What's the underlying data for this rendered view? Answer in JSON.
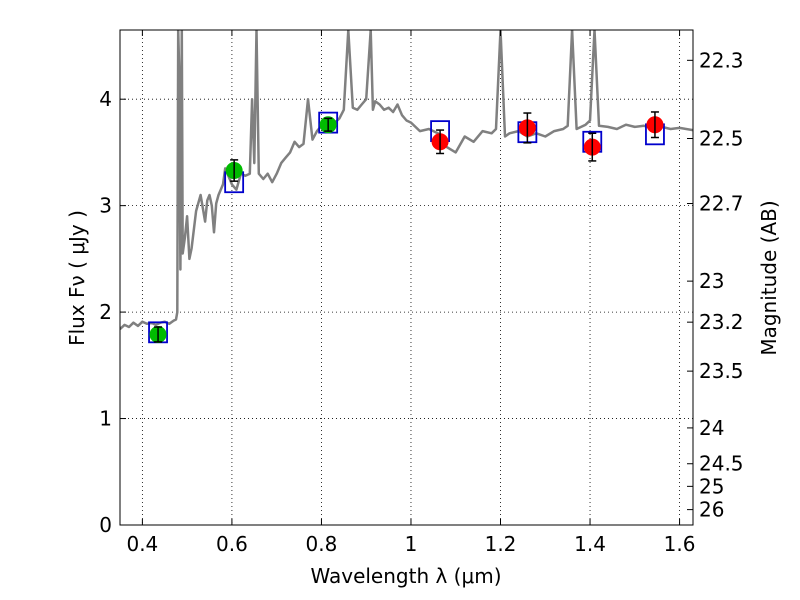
{
  "chart_data": {
    "type": "scatter",
    "xlabel": "Wavelength  λ (μm)",
    "ylabel": "Flux  Fν  ( μJy )",
    "y2label": "Magnitude (AB)",
    "xlim": [
      0.35,
      1.63
    ],
    "ylim": [
      0,
      4.65
    ],
    "grid": true,
    "x_ticks": [
      0.4,
      0.6,
      0.8,
      1.0,
      1.2,
      1.4,
      1.6
    ],
    "x_tick_labels": [
      "0.4",
      "0.6",
      "0.8",
      "1",
      "1.2",
      "1.4",
      "1.6"
    ],
    "y_ticks": [
      0,
      1,
      2,
      3,
      4
    ],
    "y_tick_labels": [
      "0",
      "1",
      "2",
      "3",
      "4"
    ],
    "mag_ticks": [
      22.3,
      22.5,
      22.7,
      23,
      23.2,
      23.5,
      24,
      24.5,
      25,
      26
    ],
    "mag_tick_labels": [
      "22.3",
      "22.5",
      "22.7",
      "23",
      "23.2",
      "23.5",
      "24",
      "24.5",
      "25",
      "26"
    ],
    "colors": {
      "model": "#808080",
      "green": "#00bb00",
      "red": "#ff0000",
      "box": "#0000cc",
      "error": "#000000"
    },
    "model_spectrum": {
      "x": [
        0.35,
        0.36,
        0.37,
        0.38,
        0.39,
        0.4,
        0.41,
        0.42,
        0.43,
        0.44,
        0.45,
        0.46,
        0.47,
        0.475,
        0.478,
        0.48,
        0.482,
        0.485,
        0.488,
        0.49,
        0.495,
        0.5,
        0.505,
        0.51,
        0.52,
        0.53,
        0.54,
        0.545,
        0.55,
        0.555,
        0.56,
        0.565,
        0.57,
        0.58,
        0.585,
        0.59,
        0.595,
        0.6,
        0.61,
        0.62,
        0.63,
        0.64,
        0.645,
        0.65,
        0.655,
        0.66,
        0.67,
        0.68,
        0.69,
        0.7,
        0.71,
        0.72,
        0.73,
        0.74,
        0.75,
        0.76,
        0.77,
        0.78,
        0.79,
        0.8,
        0.81,
        0.82,
        0.83,
        0.84,
        0.85,
        0.86,
        0.87,
        0.88,
        0.89,
        0.9,
        0.91,
        0.915,
        0.92,
        0.93,
        0.94,
        0.95,
        0.96,
        0.97,
        0.98,
        0.99,
        1.0,
        1.02,
        1.04,
        1.06,
        1.08,
        1.1,
        1.12,
        1.14,
        1.16,
        1.18,
        1.19,
        1.2,
        1.21,
        1.22,
        1.24,
        1.26,
        1.28,
        1.3,
        1.32,
        1.34,
        1.35,
        1.36,
        1.37,
        1.38,
        1.39,
        1.4,
        1.41,
        1.42,
        1.44,
        1.46,
        1.48,
        1.5,
        1.52,
        1.54,
        1.56,
        1.58,
        1.6,
        1.63
      ],
      "y": [
        1.84,
        1.88,
        1.86,
        1.9,
        1.87,
        1.91,
        1.89,
        1.9,
        1.88,
        1.9,
        1.91,
        1.89,
        1.92,
        1.93,
        2.0,
        4.65,
        4.3,
        2.4,
        4.65,
        2.55,
        2.7,
        2.9,
        2.5,
        2.6,
        2.95,
        3.1,
        2.85,
        3.05,
        3.1,
        3.0,
        2.75,
        3.02,
        3.1,
        3.2,
        3.35,
        3.3,
        3.25,
        3.2,
        3.15,
        3.3,
        3.28,
        3.3,
        4.0,
        3.4,
        4.65,
        3.3,
        3.25,
        3.3,
        3.22,
        3.3,
        3.4,
        3.45,
        3.5,
        3.6,
        3.55,
        3.58,
        4.0,
        3.62,
        3.7,
        3.75,
        3.72,
        3.8,
        3.78,
        3.82,
        3.9,
        4.65,
        3.92,
        3.9,
        3.95,
        4.0,
        4.65,
        3.9,
        3.98,
        3.95,
        3.9,
        3.92,
        3.88,
        3.95,
        3.85,
        3.8,
        3.78,
        3.7,
        3.72,
        3.68,
        3.55,
        3.5,
        3.65,
        3.6,
        3.7,
        3.68,
        3.72,
        4.65,
        3.65,
        3.68,
        3.7,
        3.65,
        3.68,
        3.65,
        3.7,
        3.72,
        3.75,
        4.65,
        3.72,
        3.74,
        3.76,
        3.8,
        4.65,
        3.75,
        3.74,
        3.72,
        3.76,
        3.74,
        3.75,
        3.73,
        3.74,
        3.72,
        3.73,
        3.71
      ]
    },
    "photometry_green": [
      {
        "x": 0.435,
        "y": 1.79,
        "err": 0.07
      },
      {
        "x": 0.605,
        "y": 3.33,
        "err": 0.1
      },
      {
        "x": 0.815,
        "y": 3.76,
        "err": 0.06
      }
    ],
    "photometry_red": [
      {
        "x": 1.065,
        "y": 3.6,
        "err": 0.11
      },
      {
        "x": 1.26,
        "y": 3.73,
        "err": 0.14
      },
      {
        "x": 1.405,
        "y": 3.55,
        "err": 0.13
      },
      {
        "x": 1.545,
        "y": 3.76,
        "err": 0.12
      }
    ],
    "model_boxes": [
      {
        "x": 0.435,
        "y": 1.81
      },
      {
        "x": 0.605,
        "y": 3.22
      },
      {
        "x": 0.815,
        "y": 3.78
      },
      {
        "x": 1.065,
        "y": 3.7
      },
      {
        "x": 1.26,
        "y": 3.69
      },
      {
        "x": 1.405,
        "y": 3.6
      },
      {
        "x": 1.545,
        "y": 3.67
      }
    ]
  }
}
